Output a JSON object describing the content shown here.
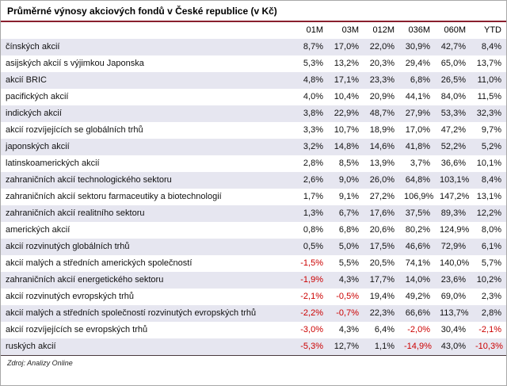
{
  "page": {
    "title": "Průměrné výnosy akciových fondů v České republice (v Kč)",
    "source": "Zdroj: Analizy Online"
  },
  "colors": {
    "negative_value": "#cc0000",
    "row_shade": "#e6e6f0",
    "title_rule": "#8a1f2e"
  },
  "chart_data": {
    "type": "table",
    "title": "Průměrné výnosy akciových fondů v České republice (v Kč)",
    "columns": [
      "01M",
      "03M",
      "012M",
      "036M",
      "060M",
      "YTD"
    ],
    "rows": [
      {
        "label": "čínských akcií",
        "values": [
          "8,7%",
          "17,0%",
          "22,0%",
          "30,9%",
          "42,7%",
          "8,4%"
        ]
      },
      {
        "label": "asijských akcií s výjimkou Japonska",
        "values": [
          "5,3%",
          "13,2%",
          "20,3%",
          "29,4%",
          "65,0%",
          "13,7%"
        ]
      },
      {
        "label": "akcií BRIC",
        "values": [
          "4,8%",
          "17,1%",
          "23,3%",
          "6,8%",
          "26,5%",
          "11,0%"
        ]
      },
      {
        "label": "pacifických akcií",
        "values": [
          "4,0%",
          "10,4%",
          "20,9%",
          "44,1%",
          "84,0%",
          "11,5%"
        ]
      },
      {
        "label": "indických akcií",
        "values": [
          "3,8%",
          "22,9%",
          "48,7%",
          "27,9%",
          "53,3%",
          "32,3%"
        ]
      },
      {
        "label": "akcií rozvíjejících se globálních trhů",
        "values": [
          "3,3%",
          "10,7%",
          "18,9%",
          "17,0%",
          "47,2%",
          "9,7%"
        ]
      },
      {
        "label": "japonských akcií",
        "values": [
          "3,2%",
          "14,8%",
          "14,6%",
          "41,8%",
          "52,2%",
          "5,2%"
        ]
      },
      {
        "label": "latinskoamerických akcií",
        "values": [
          "2,8%",
          "8,5%",
          "13,9%",
          "3,7%",
          "36,6%",
          "10,1%"
        ]
      },
      {
        "label": "zahraničních akcií technologického sektoru",
        "values": [
          "2,6%",
          "9,0%",
          "26,0%",
          "64,8%",
          "103,1%",
          "8,4%"
        ]
      },
      {
        "label": "zahraničních akcií sektoru farmaceutiky a biotechnologií",
        "values": [
          "1,7%",
          "9,1%",
          "27,2%",
          "106,9%",
          "147,2%",
          "13,1%"
        ]
      },
      {
        "label": "zahraničních akcií realitního sektoru",
        "values": [
          "1,3%",
          "6,7%",
          "17,6%",
          "37,5%",
          "89,3%",
          "12,2%"
        ]
      },
      {
        "label": "amerických akcií",
        "values": [
          "0,8%",
          "6,8%",
          "20,6%",
          "80,2%",
          "124,9%",
          "8,0%"
        ]
      },
      {
        "label": "akcií rozvinutých globálních trhů",
        "values": [
          "0,5%",
          "5,0%",
          "17,5%",
          "46,6%",
          "72,9%",
          "6,1%"
        ]
      },
      {
        "label": "akcií malých a středních amerických společností",
        "values": [
          "-1,5%",
          "5,5%",
          "20,5%",
          "74,1%",
          "140,0%",
          "5,7%"
        ]
      },
      {
        "label": "zahraničních akcií energetického sektoru",
        "values": [
          "-1,9%",
          "4,3%",
          "17,7%",
          "14,0%",
          "23,6%",
          "10,2%"
        ]
      },
      {
        "label": "akcií rozvinutých evropských trhů",
        "values": [
          "-2,1%",
          "-0,5%",
          "19,4%",
          "49,2%",
          "69,0%",
          "2,3%"
        ]
      },
      {
        "label": "akcií malých a středních společností rozvinutých evropských trhů",
        "values": [
          "-2,2%",
          "-0,7%",
          "22,3%",
          "66,6%",
          "113,7%",
          "2,8%"
        ]
      },
      {
        "label": "akcií rozvíjejících se evropských trhů",
        "values": [
          "-3,0%",
          "4,3%",
          "6,4%",
          "-2,0%",
          "30,4%",
          "-2,1%"
        ]
      },
      {
        "label": "ruských akcií",
        "values": [
          "-5,3%",
          "12,7%",
          "1,1%",
          "-14,9%",
          "43,0%",
          "-10,3%"
        ]
      }
    ],
    "source": "Zdroj: Analizy Online",
    "layout": {
      "negative_values_in_red": true,
      "alternating_row_shading": true,
      "grid": false
    }
  }
}
